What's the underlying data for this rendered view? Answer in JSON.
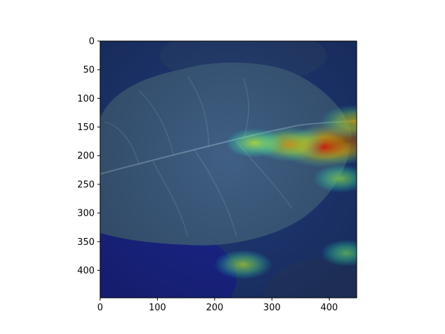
{
  "chart_data": {
    "type": "heatmap",
    "title": "",
    "xlabel": "",
    "ylabel": "",
    "xlim": [
      0,
      448
    ],
    "ylim": [
      448,
      0
    ],
    "x_ticks": [
      0,
      100,
      200,
      300,
      400
    ],
    "y_ticks": [
      0,
      50,
      100,
      150,
      200,
      250,
      300,
      350,
      400
    ],
    "colormap": "jet",
    "background_colors": {
      "dark": "#152a5c",
      "mid": "#203a7a",
      "leaf": "#3f5f84",
      "leaf_light": "#56738f",
      "blue_deep": "#1a1aa8"
    },
    "hotspots": [
      {
        "x": 430,
        "y": 175,
        "intensity": 1.0
      },
      {
        "x": 390,
        "y": 185,
        "intensity": 0.8
      },
      {
        "x": 330,
        "y": 180,
        "intensity": 0.55
      },
      {
        "x": 445,
        "y": 140,
        "intensity": 0.5
      },
      {
        "x": 270,
        "y": 178,
        "intensity": 0.35
      },
      {
        "x": 250,
        "y": 390,
        "intensity": 0.35
      },
      {
        "x": 420,
        "y": 240,
        "intensity": 0.3
      },
      {
        "x": 430,
        "y": 370,
        "intensity": 0.25
      }
    ]
  }
}
